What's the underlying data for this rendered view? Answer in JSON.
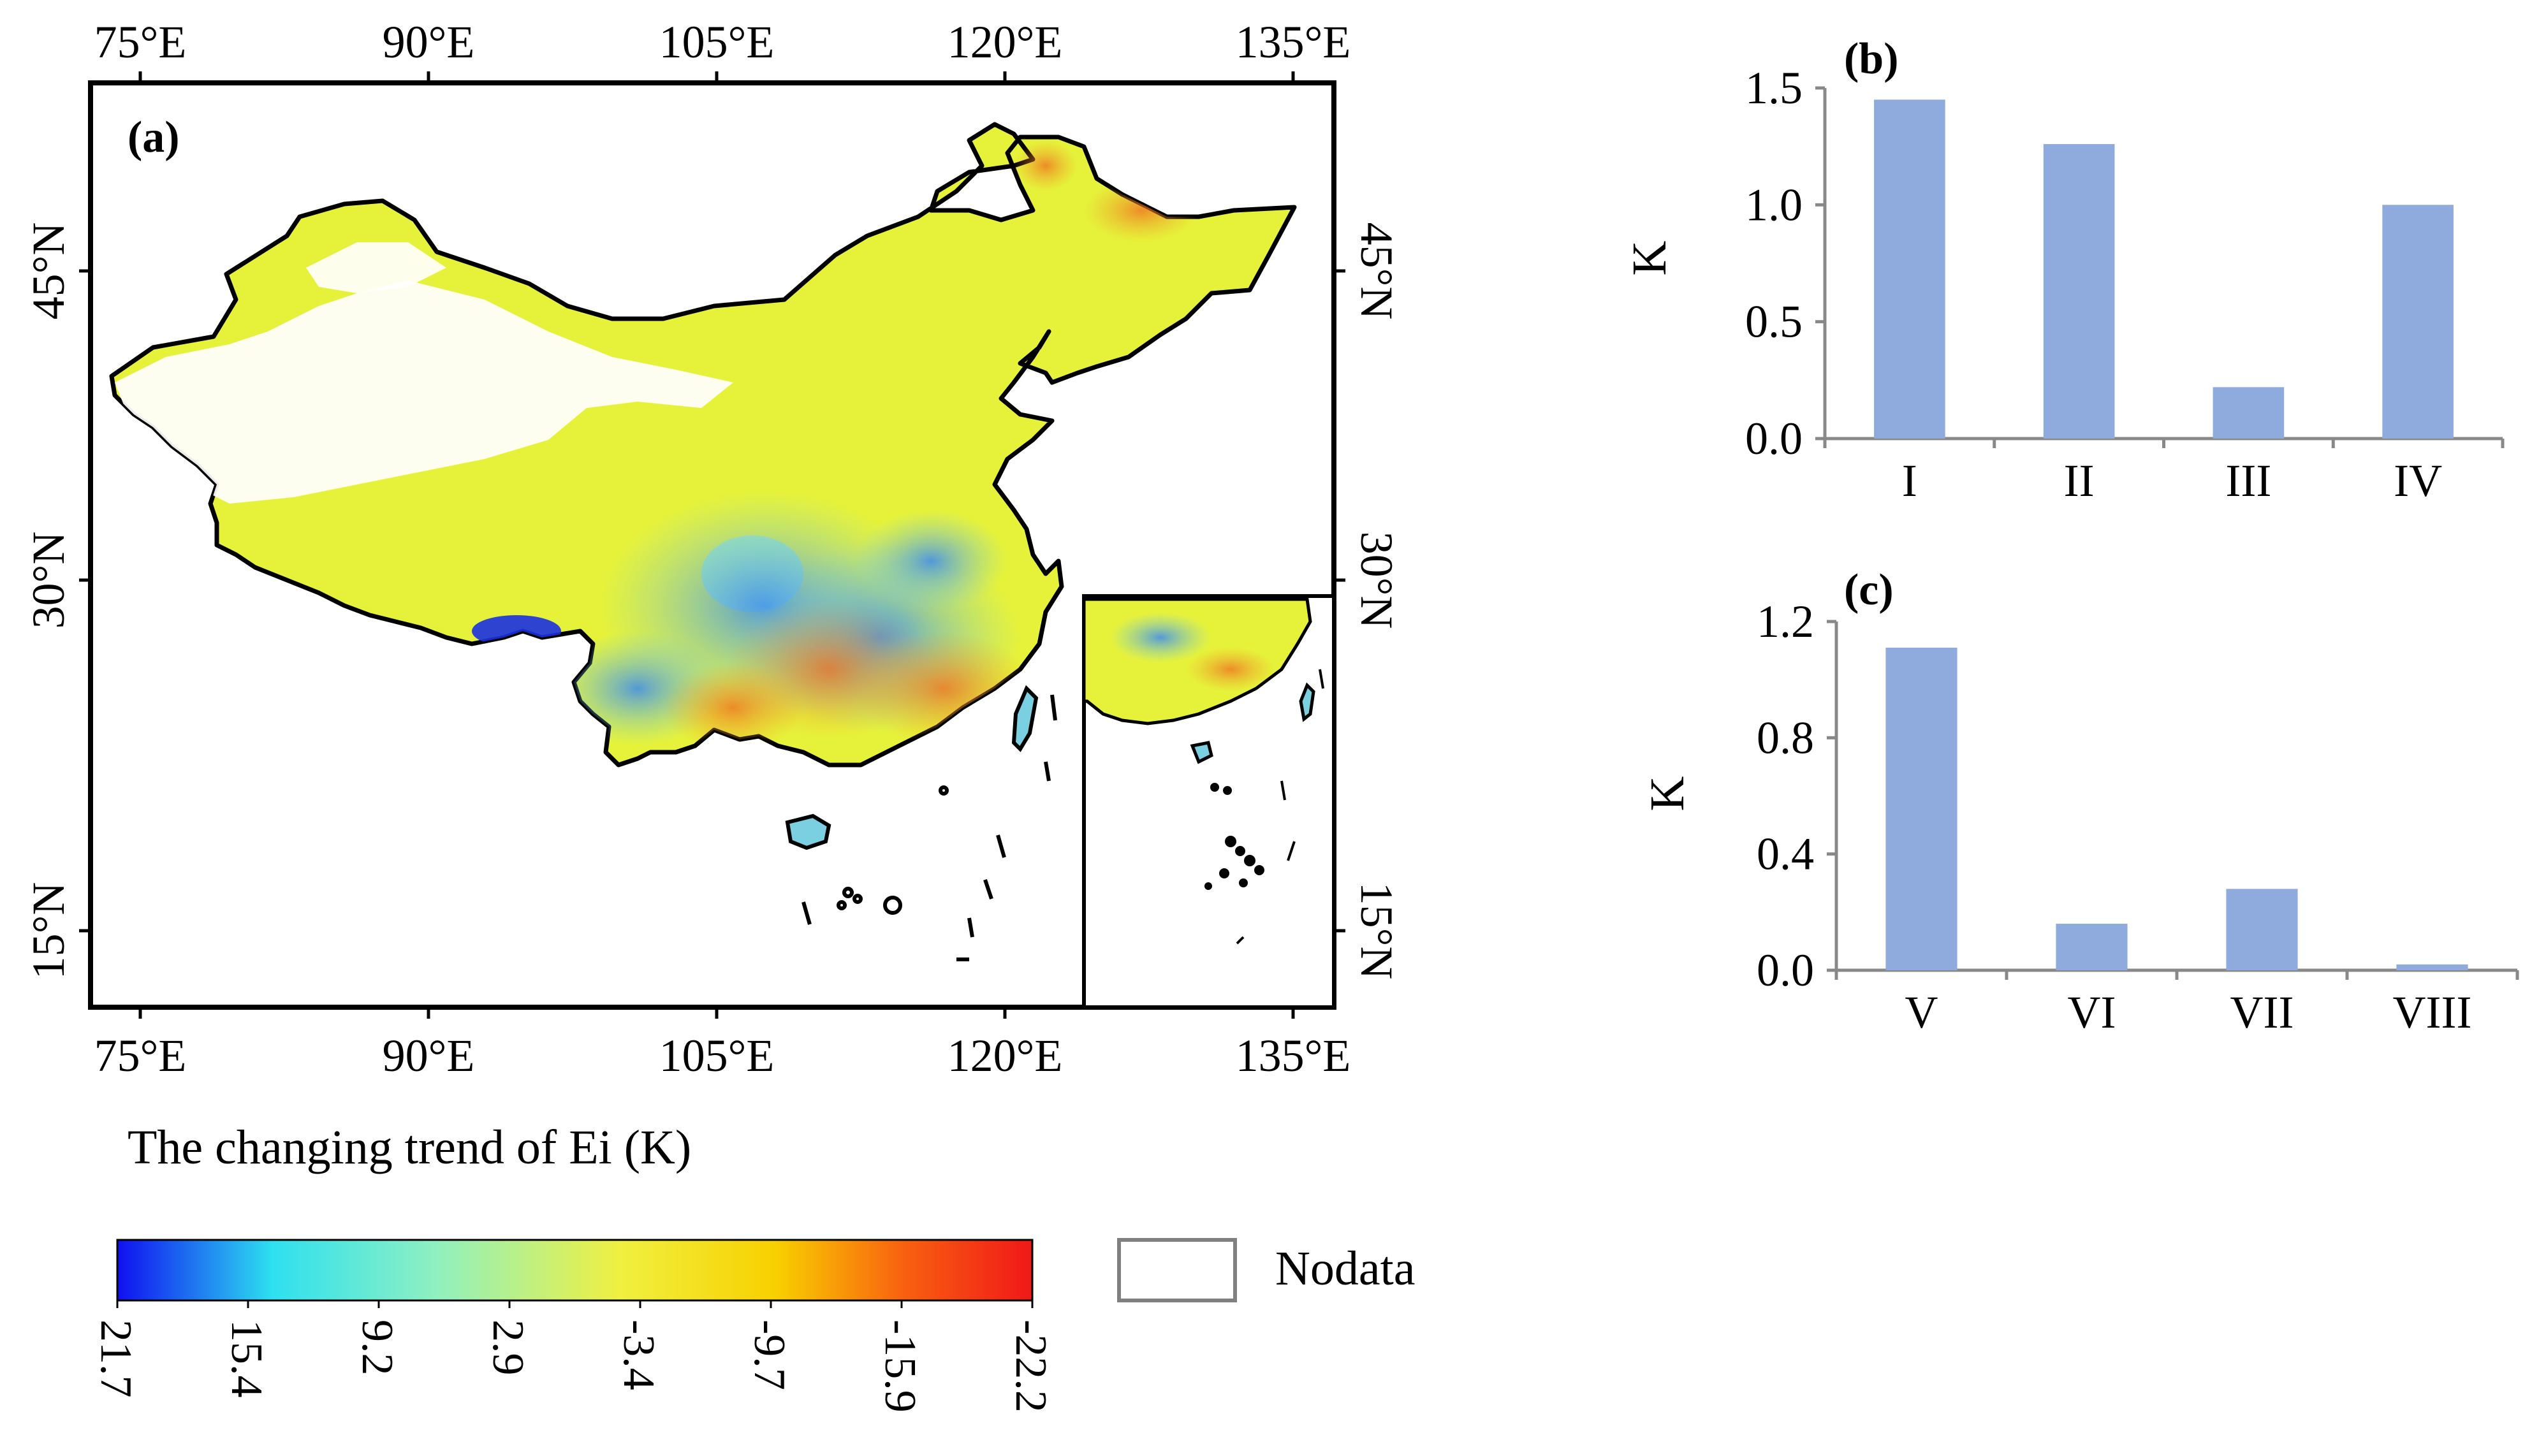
{
  "panel_a": {
    "label": "(a)",
    "lon_ticks": [
      "75°E",
      "90°E",
      "105°E",
      "120°E",
      "135°E"
    ],
    "lat_ticks": [
      "45°N",
      "30°N",
      "15°N"
    ],
    "legend_title": "The changing trend of Ei (K)",
    "colorbar_labels": [
      "21.7",
      "15.4",
      "9.2",
      "2.9",
      "-3.4",
      "-9.7",
      "-15.9",
      "-22.2"
    ],
    "colorbar_colors": [
      "#1010f0",
      "#2ee0f0",
      "#90f0c0",
      "#f0f040",
      "#f8d000",
      "#f86010",
      "#f01818"
    ],
    "nodata_label": "Nodata",
    "land_color": "#e6f23a"
  },
  "chart_data": [
    {
      "type": "bar",
      "panel_label": "(b)",
      "categories": [
        "I",
        "II",
        "III",
        "IV"
      ],
      "values": [
        1.45,
        1.26,
        0.22,
        1.0
      ],
      "ylabel": "K",
      "xlabel": "",
      "ylim": [
        0,
        1.5
      ],
      "yticks": [
        0.0,
        0.5,
        1.0,
        1.5
      ],
      "ytick_labels": [
        "0.0",
        "0.5",
        "1.0",
        "1.5"
      ],
      "bar_color": "#8faadc"
    },
    {
      "type": "bar",
      "panel_label": "(c)",
      "categories": [
        "V",
        "VI",
        "VII",
        "VIII"
      ],
      "values": [
        1.11,
        0.16,
        0.28,
        0.02
      ],
      "ylabel": "K",
      "xlabel": "",
      "ylim": [
        0,
        1.2
      ],
      "yticks": [
        0.0,
        0.4,
        0.8,
        1.2
      ],
      "ytick_labels": [
        "0.0",
        "0.4",
        "0.8",
        "1.2"
      ],
      "bar_color": "#8faadc"
    }
  ]
}
